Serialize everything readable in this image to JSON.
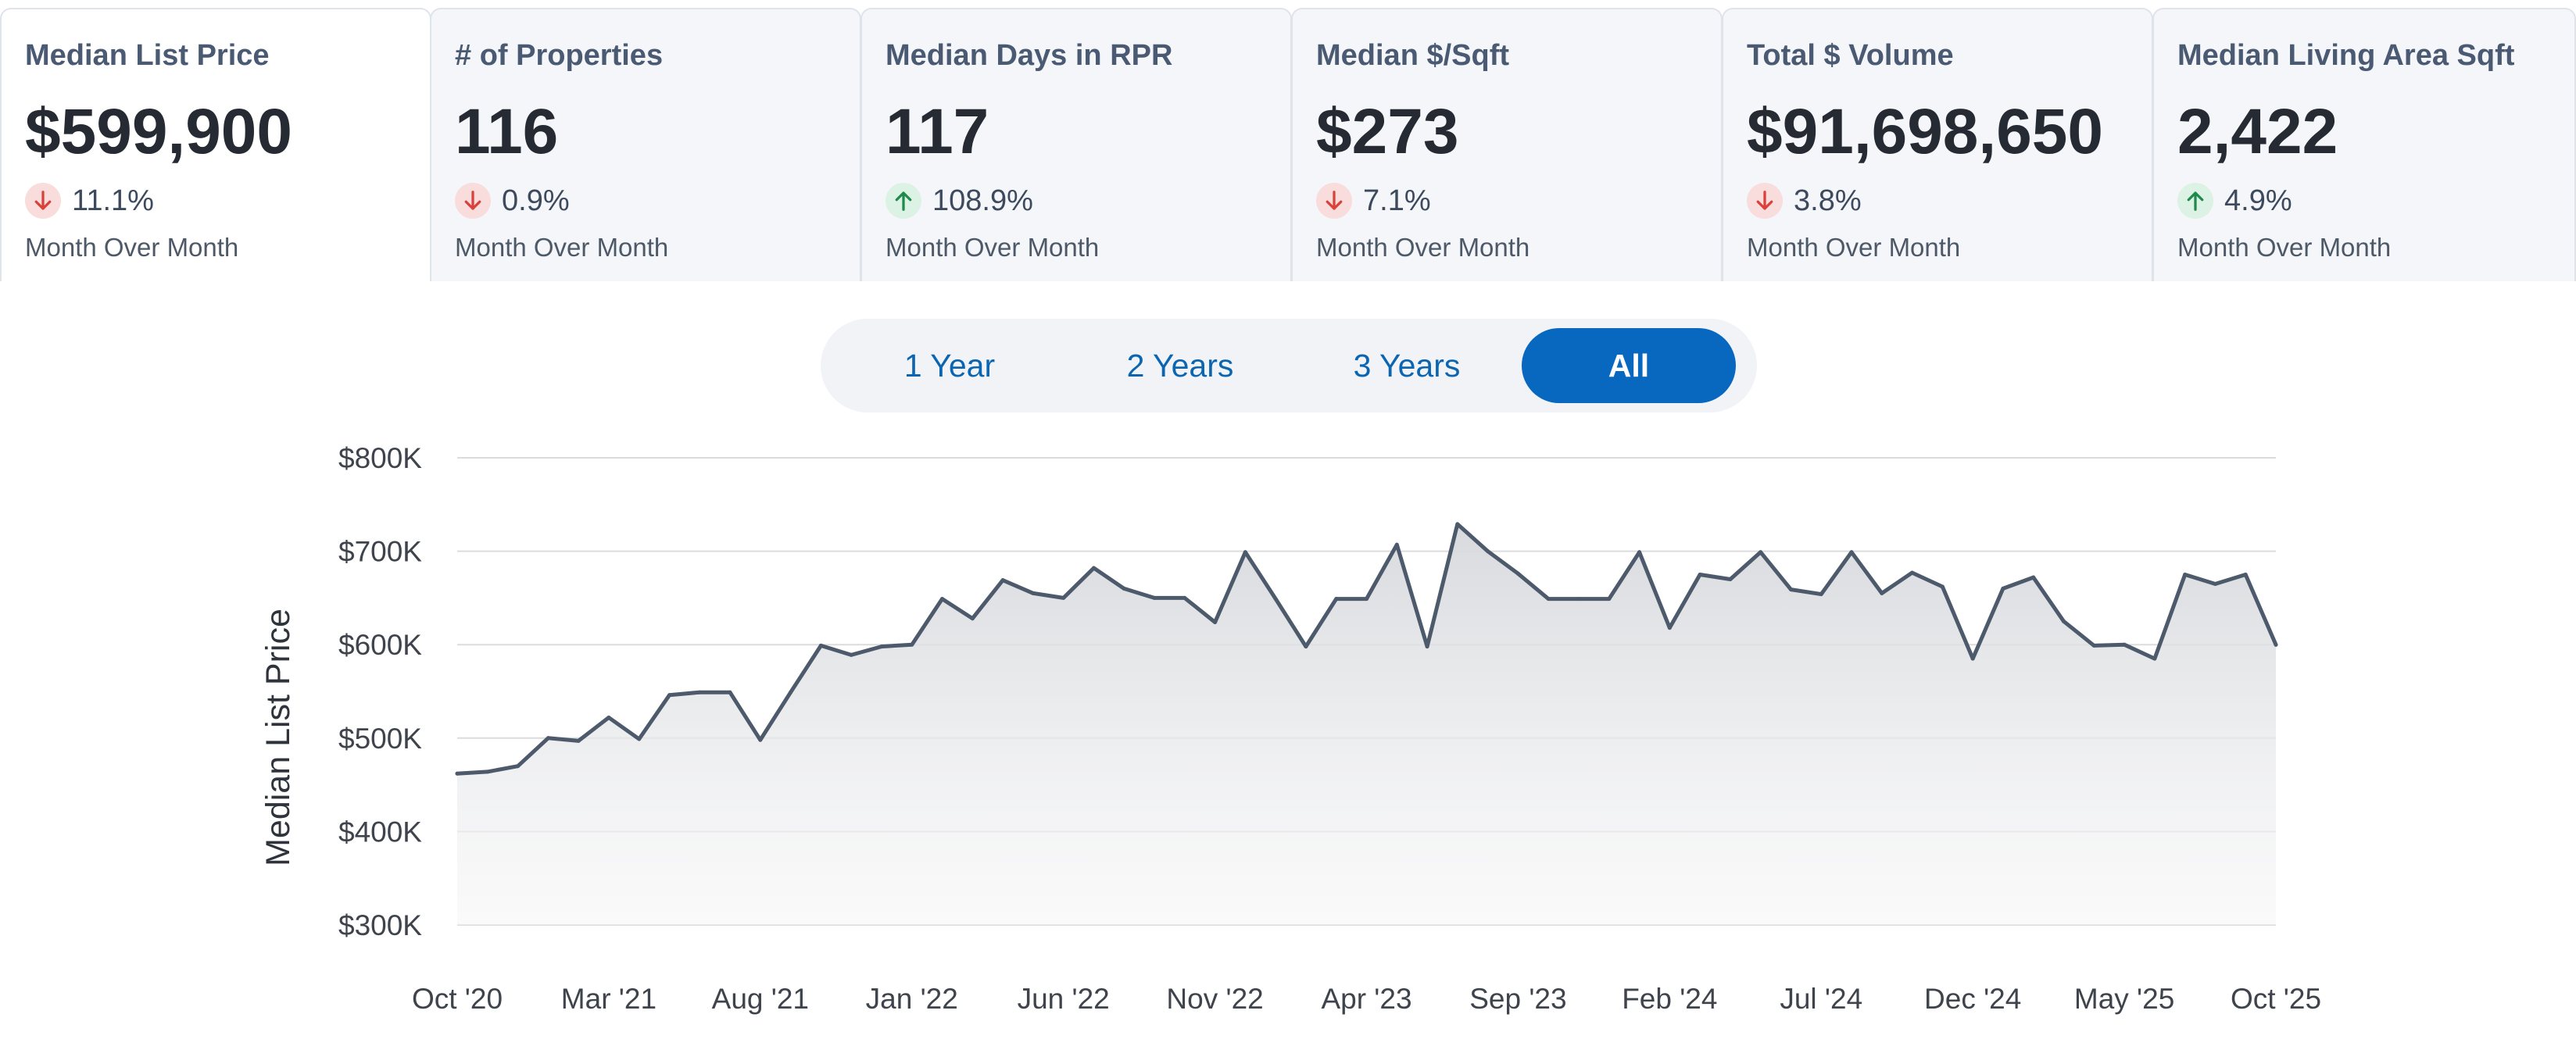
{
  "metrics": [
    {
      "title": "Median List Price",
      "value": "$599,900",
      "direction": "down",
      "change": "11.1%",
      "period": "Month Over Month",
      "active": true
    },
    {
      "title": "# of Properties",
      "value": "116",
      "direction": "down",
      "change": "0.9%",
      "period": "Month Over Month",
      "active": false
    },
    {
      "title": "Median Days in RPR",
      "value": "117",
      "direction": "up",
      "change": "108.9%",
      "period": "Month Over Month",
      "active": false
    },
    {
      "title": "Median $/Sqft",
      "value": "$273",
      "direction": "down",
      "change": "7.1%",
      "period": "Month Over Month",
      "active": false
    },
    {
      "title": "Total $ Volume",
      "value": "$91,698,650",
      "direction": "down",
      "change": "3.8%",
      "period": "Month Over Month",
      "active": false
    },
    {
      "title": "Median Living Area Sqft",
      "value": "2,422",
      "direction": "up",
      "change": "4.9%",
      "period": "Month Over Month",
      "active": false
    }
  ],
  "range_buttons": [
    {
      "label": "1 Year",
      "active": false
    },
    {
      "label": "2 Years",
      "active": false
    },
    {
      "label": "3 Years",
      "active": false
    },
    {
      "label": "All",
      "active": true
    }
  ],
  "colors": {
    "down": "#d9413a",
    "up": "#1e8a4c",
    "line": "#4d5a6b",
    "accent": "#0868bf"
  },
  "chart_data": {
    "type": "area",
    "ylabel": "Median List Price",
    "xlabel": "",
    "ylim": [
      300000,
      800000
    ],
    "y_ticks": [
      300000,
      400000,
      500000,
      600000,
      700000,
      800000
    ],
    "y_tick_labels": [
      "$300K",
      "$400K",
      "$500K",
      "$600K",
      "$700K",
      "$800K"
    ],
    "x_tick_labels": [
      "Oct '20",
      "Mar '21",
      "Aug '21",
      "Jan '22",
      "Jun '22",
      "Nov '22",
      "Apr '23",
      "Sep '23",
      "Feb '24",
      "Jul '24",
      "Dec '24",
      "May '25",
      "Oct '25"
    ],
    "x_tick_index": [
      0,
      5,
      10,
      15,
      20,
      25,
      30,
      35,
      40,
      45,
      50,
      55,
      60
    ],
    "grid": true,
    "series": [
      {
        "values": [
          462000,
          464000,
          470000,
          500000,
          497000,
          522000,
          499000,
          546000,
          549000,
          549000,
          498000,
          549000,
          599000,
          589000,
          598000,
          600000,
          649000,
          628000,
          669000,
          655000,
          650000,
          682000,
          660000,
          650000,
          650000,
          624000,
          699000,
          649000,
          598000,
          649000,
          649000,
          707000,
          598000,
          729000,
          700000,
          676000,
          649000,
          649000,
          649000,
          699000,
          618000,
          675000,
          670000,
          699000,
          659000,
          654000,
          699000,
          655000,
          677000,
          662000,
          585000,
          660000,
          672000,
          625000,
          599000,
          600000,
          585000,
          675000,
          665000,
          675000,
          599900
        ]
      }
    ]
  }
}
